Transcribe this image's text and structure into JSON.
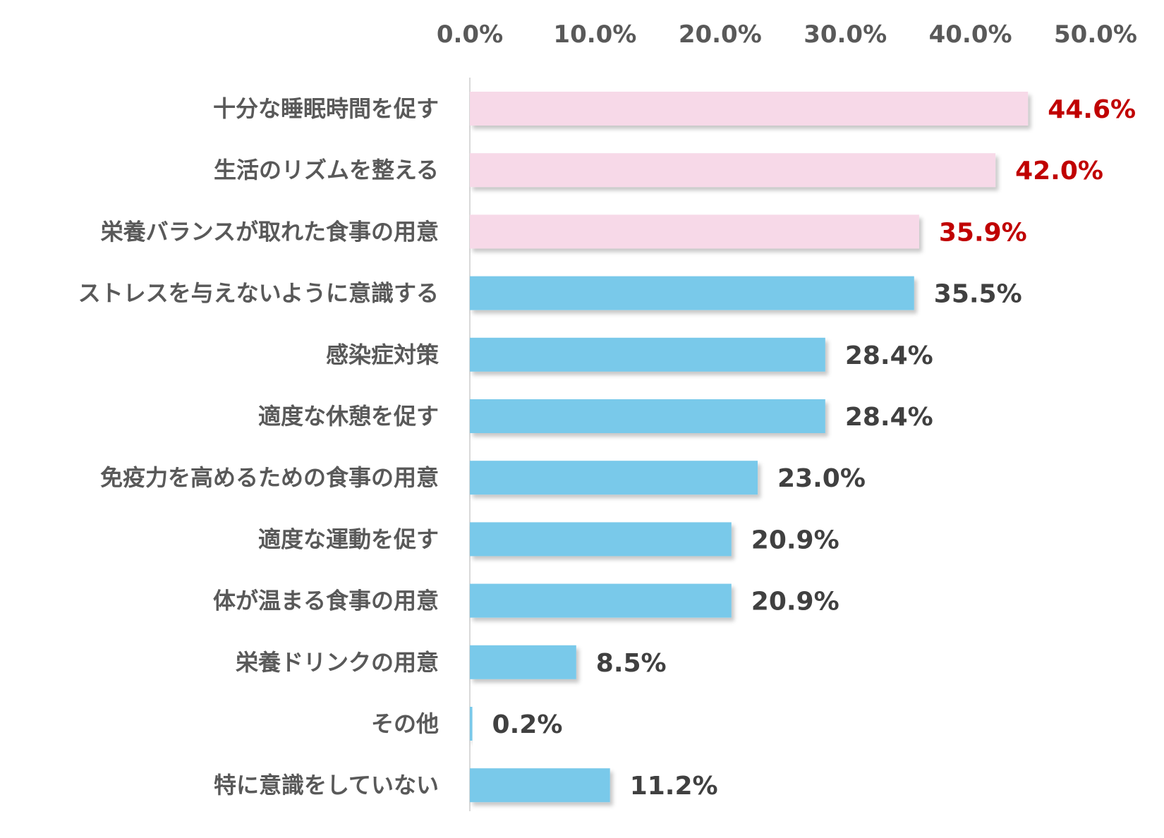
{
  "chart_data": {
    "type": "bar",
    "orientation": "horizontal",
    "title": "",
    "xlabel": "",
    "ylabel": "",
    "xlim": [
      0,
      50
    ],
    "ticks": [
      "0.0%",
      "10.0%",
      "20.0%",
      "30.0%",
      "40.0%",
      "50.0%"
    ],
    "tick_values": [
      0,
      10,
      20,
      30,
      40,
      50
    ],
    "axis_position": "top",
    "grid": false,
    "legend": "none",
    "colors": {
      "highlight_bar": "#f7d9e8",
      "normal_bar": "#79c9ea",
      "highlight_label": "#c00000",
      "normal_label": "#404040",
      "axis_text": "#595959",
      "axis_line": "#d9d9d9"
    },
    "bars": [
      {
        "category": "十分な睡眠時間を促す",
        "value": 44.6,
        "label": "44.6%",
        "highlight": true
      },
      {
        "category": "生活のリズムを整える",
        "value": 42.0,
        "label": "42.0%",
        "highlight": true
      },
      {
        "category": "栄養バランスが取れた食事の用意",
        "value": 35.9,
        "label": "35.9%",
        "highlight": true
      },
      {
        "category": "ストレスを与えないように意識する",
        "value": 35.5,
        "label": "35.5%",
        "highlight": false
      },
      {
        "category": "感染症対策",
        "value": 28.4,
        "label": "28.4%",
        "highlight": false
      },
      {
        "category": "適度な休憩を促す",
        "value": 28.4,
        "label": "28.4%",
        "highlight": false
      },
      {
        "category": "免疫力を高めるための食事の用意",
        "value": 23.0,
        "label": "23.0%",
        "highlight": false
      },
      {
        "category": "適度な運動を促す",
        "value": 20.9,
        "label": "20.9%",
        "highlight": false
      },
      {
        "category": "体が温まる食事の用意",
        "value": 20.9,
        "label": "20.9%",
        "highlight": false
      },
      {
        "category": "栄養ドリンクの用意",
        "value": 8.5,
        "label": "8.5%",
        "highlight": false
      },
      {
        "category": "その他",
        "value": 0.2,
        "label": "0.2%",
        "highlight": false
      },
      {
        "category": "特に意識をしていない",
        "value": 11.2,
        "label": "11.2%",
        "highlight": false
      }
    ]
  }
}
